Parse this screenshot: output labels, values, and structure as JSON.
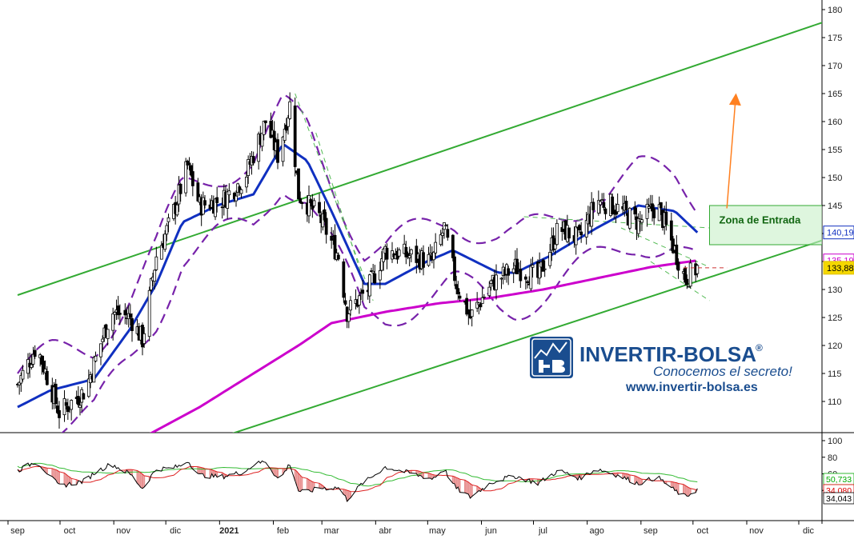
{
  "chart_data": {
    "type": "candlestick",
    "price_axis": {
      "range": [
        104,
        182
      ],
      "ticks": [
        110,
        115,
        120,
        125,
        130,
        135,
        140,
        145,
        150,
        155,
        160,
        165,
        170,
        175,
        180
      ]
    },
    "x_axis": {
      "start": "2020-09-01",
      "end": "2021-12-31",
      "labels": [
        {
          "date": "2020-09-01",
          "label": "sep"
        },
        {
          "date": "2020-10-01",
          "label": "oct"
        },
        {
          "date": "2020-11-01",
          "label": "nov"
        },
        {
          "date": "2020-12-01",
          "label": "dic"
        },
        {
          "date": "2021-01-01",
          "label": "2021",
          "bold": true
        },
        {
          "date": "2021-02-01",
          "label": "feb"
        },
        {
          "date": "2021-03-01",
          "label": "mar"
        },
        {
          "date": "2021-04-01",
          "label": "abr"
        },
        {
          "date": "2021-05-01",
          "label": "may"
        },
        {
          "date": "2021-06-01",
          "label": "jun"
        },
        {
          "date": "2021-07-01",
          "label": "jul"
        },
        {
          "date": "2021-08-01",
          "label": "ago"
        },
        {
          "date": "2021-09-01",
          "label": "sep"
        },
        {
          "date": "2021-10-01",
          "label": "oct"
        },
        {
          "date": "2021-11-01",
          "label": "nov"
        },
        {
          "date": "2021-12-01",
          "label": "dic"
        }
      ]
    },
    "price_key_points": [
      {
        "date": "2020-09-01",
        "close": 113
      },
      {
        "date": "2020-09-12",
        "close": 120
      },
      {
        "date": "2020-09-25",
        "close": 108
      },
      {
        "date": "2020-10-10",
        "close": 112
      },
      {
        "date": "2020-10-25",
        "close": 126
      },
      {
        "date": "2020-11-05",
        "close": 125
      },
      {
        "date": "2020-11-12",
        "close": 121
      },
      {
        "date": "2020-11-20",
        "close": 136
      },
      {
        "date": "2020-11-28",
        "close": 142
      },
      {
        "date": "2020-12-08",
        "close": 152
      },
      {
        "date": "2020-12-15",
        "close": 145
      },
      {
        "date": "2020-12-28",
        "close": 146
      },
      {
        "date": "2021-01-10",
        "close": 150
      },
      {
        "date": "2021-01-22",
        "close": 160
      },
      {
        "date": "2021-01-29",
        "close": 154
      },
      {
        "date": "2021-02-05",
        "close": 163
      },
      {
        "date": "2021-02-10",
        "close": 147
      },
      {
        "date": "2021-02-22",
        "close": 143
      },
      {
        "date": "2021-03-05",
        "close": 136
      },
      {
        "date": "2021-03-10",
        "close": 126
      },
      {
        "date": "2021-03-22",
        "close": 130
      },
      {
        "date": "2021-04-01",
        "close": 137
      },
      {
        "date": "2021-04-15",
        "close": 136
      },
      {
        "date": "2021-04-28",
        "close": 135
      },
      {
        "date": "2021-05-05",
        "close": 141
      },
      {
        "date": "2021-05-12",
        "close": 131
      },
      {
        "date": "2021-05-20",
        "close": 125
      },
      {
        "date": "2021-06-01",
        "close": 131
      },
      {
        "date": "2021-06-15",
        "close": 134
      },
      {
        "date": "2021-06-28",
        "close": 132
      },
      {
        "date": "2021-07-10",
        "close": 141
      },
      {
        "date": "2021-07-22",
        "close": 139
      },
      {
        "date": "2021-08-01",
        "close": 146
      },
      {
        "date": "2021-08-10",
        "close": 145
      },
      {
        "date": "2021-08-25",
        "close": 142
      },
      {
        "date": "2021-09-05",
        "close": 145
      },
      {
        "date": "2021-09-15",
        "close": 137
      },
      {
        "date": "2021-09-21",
        "close": 132
      },
      {
        "date": "2021-09-28",
        "close": 133.88
      }
    ],
    "series": [
      {
        "name": "MA_short",
        "color": "#1030c0",
        "points": [
          {
            "date": "2020-09-01",
            "value": 109
          },
          {
            "date": "2020-09-20",
            "value": 112
          },
          {
            "date": "2020-10-15",
            "value": 114
          },
          {
            "date": "2020-11-05",
            "value": 123
          },
          {
            "date": "2020-11-20",
            "value": 131
          },
          {
            "date": "2020-12-05",
            "value": 142
          },
          {
            "date": "2020-12-25",
            "value": 145
          },
          {
            "date": "2021-01-15",
            "value": 147
          },
          {
            "date": "2021-02-01",
            "value": 156
          },
          {
            "date": "2021-02-15",
            "value": 153
          },
          {
            "date": "2021-03-01",
            "value": 144
          },
          {
            "date": "2021-03-20",
            "value": 131
          },
          {
            "date": "2021-04-01",
            "value": 131
          },
          {
            "date": "2021-04-25",
            "value": 135
          },
          {
            "date": "2021-05-10",
            "value": 137
          },
          {
            "date": "2021-06-05",
            "value": 133
          },
          {
            "date": "2021-06-15",
            "value": 133
          },
          {
            "date": "2021-07-05",
            "value": 136
          },
          {
            "date": "2021-08-01",
            "value": 141
          },
          {
            "date": "2021-08-25",
            "value": 145
          },
          {
            "date": "2021-09-15",
            "value": 144
          },
          {
            "date": "2021-09-28",
            "value": 140.19
          }
        ]
      },
      {
        "name": "MA_long",
        "color": "#cc00cc",
        "points": [
          {
            "date": "2020-11-15",
            "value": 104
          },
          {
            "date": "2020-12-15",
            "value": 109
          },
          {
            "date": "2021-01-15",
            "value": 115
          },
          {
            "date": "2021-02-10",
            "value": 120
          },
          {
            "date": "2021-03-01",
            "value": 124
          },
          {
            "date": "2021-04-01",
            "value": 126
          },
          {
            "date": "2021-05-01",
            "value": 127.5
          },
          {
            "date": "2021-06-01",
            "value": 128.5
          },
          {
            "date": "2021-07-01",
            "value": 130
          },
          {
            "date": "2021-08-01",
            "value": 132
          },
          {
            "date": "2021-09-01",
            "value": 134
          },
          {
            "date": "2021-09-28",
            "value": 135.19
          }
        ]
      }
    ],
    "channel_lines": [
      {
        "start": {
          "date": "2020-09-01",
          "value": 129
        },
        "end": {
          "date": "2021-12-31",
          "value": 180
        }
      },
      {
        "start": {
          "date": "2020-12-31",
          "value": 104
        },
        "end": {
          "date": "2021-12-31",
          "value": 141
        }
      }
    ],
    "annotation": {
      "label": "Zona de Entrada",
      "range": [
        138,
        145
      ],
      "start": "2021-10-05",
      "end": "2021-12-31",
      "arrow": {
        "from": {
          "date": "2021-10-15",
          "value": 144.5
        },
        "to": {
          "date": "2021-10-20",
          "value": 164
        }
      }
    },
    "price_labels": [
      {
        "value": 140.19,
        "label": "140,19",
        "color": "#1030c0"
      },
      {
        "value": 135.19,
        "label": "135,19",
        "color": "#cc00cc"
      },
      {
        "value": 133.88,
        "label": "133,88",
        "color": "#e0c000"
      }
    ],
    "oscillator": {
      "range": [
        20,
        100
      ],
      "ticks": [
        40,
        60,
        80,
        100
      ],
      "labels": [
        {
          "value": 50.733,
          "label": "50,733",
          "color": "#00aa00"
        },
        {
          "value": 34.08,
          "label": "34,080",
          "color": "#e00000"
        },
        {
          "value": 34.043,
          "label": "34,043",
          "color": "#000000"
        }
      ]
    }
  },
  "logo": {
    "name": "INVERTIR-BOLSA",
    "registered": "®",
    "slogan": "Conocemos el secreto!",
    "url": "www.invertir-bolsa.es"
  }
}
